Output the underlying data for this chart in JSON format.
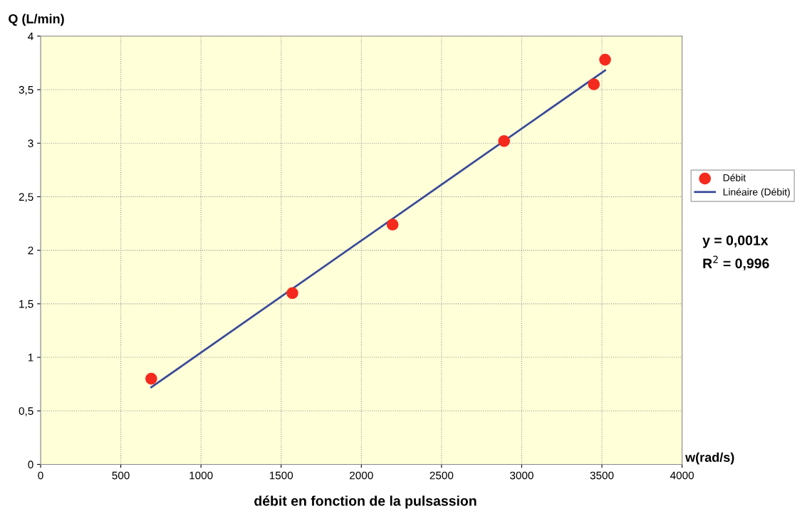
{
  "chart_data": {
    "type": "scatter",
    "title": "débit en fonction de la pulsassion",
    "xlabel": "w(rad/s)",
    "ylabel": "Q (L/min)",
    "series": [
      {
        "name": "Débit",
        "marker": "circle",
        "color": "#f52a1e",
        "x": [
          690,
          1570,
          2195,
          2890,
          3450,
          3520
        ],
        "values": [
          0.8,
          1.6,
          2.24,
          3.02,
          3.55,
          3.78
        ]
      },
      {
        "name": "Linéaire (Débit)",
        "type": "line",
        "color": "#3a4a9a",
        "x": [
          690,
          3520
        ],
        "values": [
          0.72,
          3.68
        ]
      }
    ],
    "xlim": [
      0,
      4000
    ],
    "xticks": [
      0,
      500,
      1000,
      1500,
      2000,
      2500,
      3000,
      3500,
      4000
    ],
    "ylim": [
      0,
      4
    ],
    "yticks": [
      0,
      {
        "value": 0.5,
        "label": "0,5"
      },
      1,
      {
        "value": 1.5,
        "label": "1,5"
      },
      2,
      {
        "value": 2.5,
        "label": "2,5"
      },
      3,
      {
        "value": 3.5,
        "label": "3,5"
      },
      4
    ],
    "grid": true,
    "legend": "right",
    "annotations": [
      "y = 0,001x",
      "R$^{2}$ = 0,996"
    ]
  }
}
